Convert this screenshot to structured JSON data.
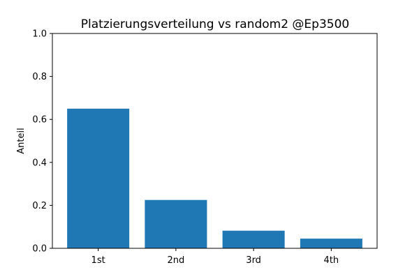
{
  "chart_data": {
    "type": "bar",
    "title": "Platzierungsverteilung vs random2 @Ep3500",
    "xlabel": "",
    "ylabel": "Anteil",
    "categories": [
      "1st",
      "2nd",
      "3rd",
      "4th"
    ],
    "values": [
      0.65,
      0.225,
      0.082,
      0.045
    ],
    "ylim": [
      0.0,
      1.0
    ],
    "yticks": [
      0.0,
      0.2,
      0.4,
      0.6,
      0.8,
      1.0
    ],
    "ytick_labels": [
      "0.0",
      "0.2",
      "0.4",
      "0.6",
      "0.8",
      "1.0"
    ],
    "grid": false,
    "bar_color": "#1f77b4"
  }
}
